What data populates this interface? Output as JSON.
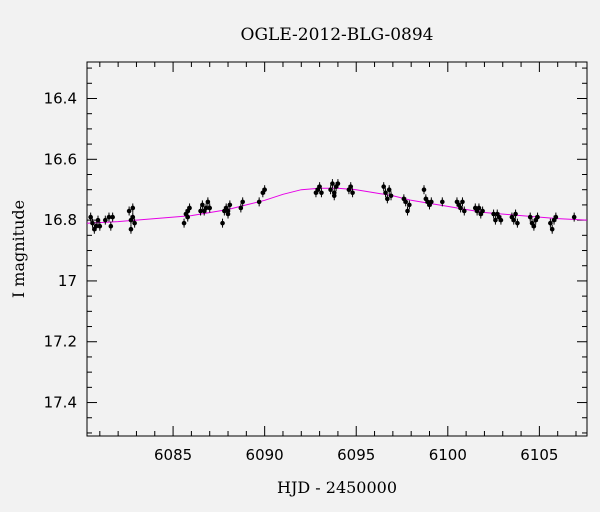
{
  "chart_data": {
    "type": "scatter",
    "title": "OGLE-2012-BLG-0894",
    "xlabel": "HJD - 2450000",
    "ylabel": "I magnitude",
    "xlim": [
      6080.3,
      6107.6
    ],
    "ylim": [
      17.51,
      16.28
    ],
    "y_inverted": true,
    "grid": false,
    "xticks": [
      6085,
      6090,
      6095,
      6100,
      6105
    ],
    "yticks": [
      16.4,
      16.6,
      16.8,
      17.0,
      17.2,
      17.4
    ],
    "ytick_labels": [
      "16.4",
      "16.6",
      "16.8",
      "17",
      "17.2",
      "17.4"
    ],
    "model_color": "#e600e6",
    "point_color": "#000000",
    "series": [
      {
        "kind": "observations",
        "points": [
          [
            6080.5,
            16.79
          ],
          [
            6080.6,
            16.81
          ],
          [
            6080.7,
            16.83
          ],
          [
            6080.8,
            16.82
          ],
          [
            6080.9,
            16.8
          ],
          [
            6081.0,
            16.82
          ],
          [
            6081.3,
            16.8
          ],
          [
            6081.5,
            16.79
          ],
          [
            6081.6,
            16.82
          ],
          [
            6081.7,
            16.79
          ],
          [
            6082.6,
            16.77
          ],
          [
            6082.7,
            16.8
          ],
          [
            6082.7,
            16.83
          ],
          [
            6082.8,
            16.79
          ],
          [
            6082.9,
            16.81
          ],
          [
            6082.8,
            16.76
          ],
          [
            6085.6,
            16.81
          ],
          [
            6085.7,
            16.78
          ],
          [
            6085.8,
            16.77
          ],
          [
            6085.9,
            16.76
          ],
          [
            6085.8,
            16.79
          ],
          [
            6086.5,
            16.77
          ],
          [
            6086.6,
            16.75
          ],
          [
            6086.7,
            16.77
          ],
          [
            6086.8,
            16.76
          ],
          [
            6086.9,
            16.74
          ],
          [
            6087.0,
            16.76
          ],
          [
            6087.7,
            16.81
          ],
          [
            6087.8,
            16.77
          ],
          [
            6087.9,
            16.76
          ],
          [
            6088.0,
            16.78
          ],
          [
            6088.1,
            16.75
          ],
          [
            6088.0,
            16.77
          ],
          [
            6088.7,
            16.76
          ],
          [
            6088.8,
            16.74
          ],
          [
            6089.7,
            16.74
          ],
          [
            6089.9,
            16.71
          ],
          [
            6090.0,
            16.7
          ],
          [
            6092.8,
            16.71
          ],
          [
            6092.9,
            16.7
          ],
          [
            6093.0,
            16.69
          ],
          [
            6093.1,
            16.71
          ],
          [
            6093.6,
            16.7
          ],
          [
            6093.7,
            16.68
          ],
          [
            6093.8,
            16.71
          ],
          [
            6093.9,
            16.69
          ],
          [
            6094.0,
            16.68
          ],
          [
            6093.8,
            16.72
          ],
          [
            6094.6,
            16.7
          ],
          [
            6094.7,
            16.69
          ],
          [
            6094.8,
            16.71
          ],
          [
            6096.5,
            16.69
          ],
          [
            6096.6,
            16.71
          ],
          [
            6096.7,
            16.73
          ],
          [
            6096.8,
            16.7
          ],
          [
            6096.9,
            16.72
          ],
          [
            6097.6,
            16.73
          ],
          [
            6097.7,
            16.74
          ],
          [
            6097.8,
            16.77
          ],
          [
            6097.9,
            16.75
          ],
          [
            6098.7,
            16.7
          ],
          [
            6098.8,
            16.73
          ],
          [
            6098.9,
            16.74
          ],
          [
            6099.0,
            16.75
          ],
          [
            6099.1,
            16.74
          ],
          [
            6099.7,
            16.74
          ],
          [
            6100.5,
            16.74
          ],
          [
            6100.6,
            16.75
          ],
          [
            6100.7,
            16.76
          ],
          [
            6100.8,
            16.74
          ],
          [
            6100.9,
            16.77
          ],
          [
            6101.5,
            16.76
          ],
          [
            6101.6,
            16.77
          ],
          [
            6101.7,
            16.76
          ],
          [
            6101.8,
            16.78
          ],
          [
            6101.9,
            16.77
          ],
          [
            6102.5,
            16.78
          ],
          [
            6102.6,
            16.8
          ],
          [
            6102.7,
            16.78
          ],
          [
            6102.8,
            16.79
          ],
          [
            6102.9,
            16.8
          ],
          [
            6103.5,
            16.79
          ],
          [
            6103.6,
            16.8
          ],
          [
            6103.7,
            16.78
          ],
          [
            6103.8,
            16.81
          ],
          [
            6104.5,
            16.79
          ],
          [
            6104.6,
            16.81
          ],
          [
            6104.7,
            16.82
          ],
          [
            6104.8,
            16.8
          ],
          [
            6104.9,
            16.79
          ],
          [
            6105.6,
            16.81
          ],
          [
            6105.7,
            16.83
          ],
          [
            6105.8,
            16.8
          ],
          [
            6105.9,
            16.79
          ],
          [
            6106.9,
            16.79
          ]
        ]
      },
      {
        "kind": "model",
        "x": [
          6080.3,
          6082,
          6084,
          6086,
          6088,
          6089,
          6090,
          6091,
          6092,
          6093,
          6094,
          6095,
          6096,
          6097,
          6098,
          6099,
          6100,
          6101,
          6102,
          6104,
          6106,
          6107.6
        ],
        "y": [
          16.81,
          16.805,
          16.795,
          16.785,
          16.765,
          16.75,
          16.735,
          16.715,
          16.7,
          16.695,
          16.695,
          16.7,
          16.71,
          16.72,
          16.735,
          16.745,
          16.755,
          16.765,
          16.775,
          16.785,
          16.795,
          16.8
        ]
      }
    ]
  }
}
